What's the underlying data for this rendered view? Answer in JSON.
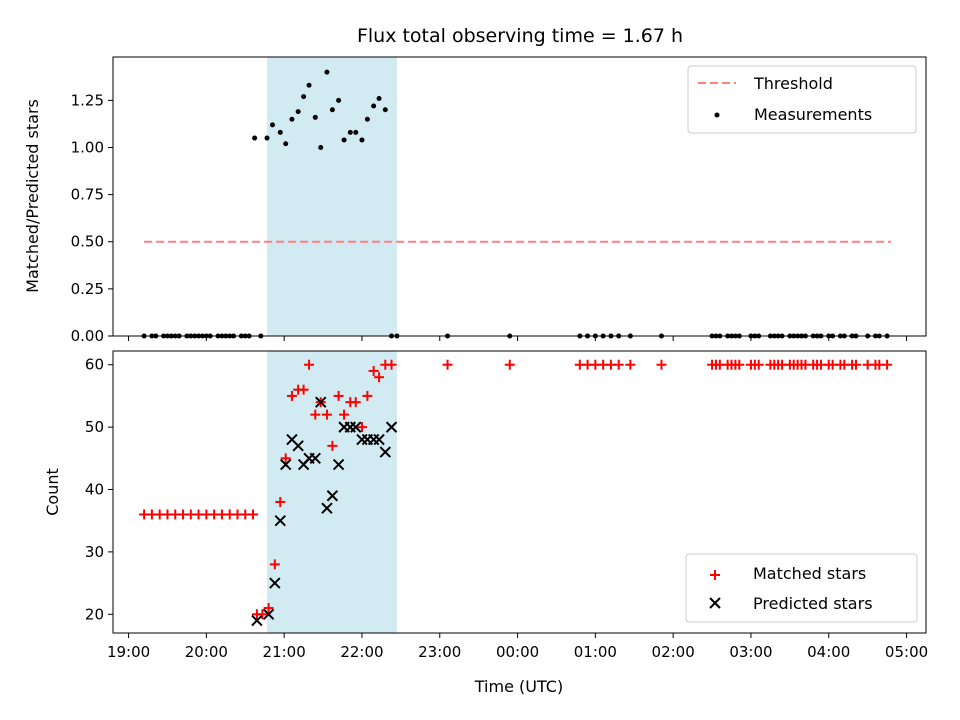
{
  "title": "Flux total observing time = 1.67 h",
  "colors": {
    "threshold": "#ff7f7f",
    "matched": "#ff0000",
    "predicted": "#000000",
    "span": "#add8e6",
    "axis": "#000000"
  },
  "chart_data": [
    {
      "type": "scatter",
      "panel": "top",
      "ylabel": "Matched/Predicted stars",
      "xlim": [
        -0.2,
        10.25
      ],
      "ylim": [
        0,
        1.48
      ],
      "x_origin": "19:00",
      "yticks": [
        0,
        0.25,
        0.5,
        0.75,
        1.0,
        1.25
      ],
      "ytick_labels": [
        "0.00",
        "0.25",
        "0.50",
        "0.75",
        "1.00",
        "1.25"
      ],
      "highlight_span_hours": [
        1.78,
        3.45
      ],
      "threshold": {
        "label": "Threshold",
        "value": 0.5,
        "x_range": [
          0.2,
          9.8
        ]
      },
      "legend": [
        "Threshold",
        "Measurements"
      ],
      "legend_position": "top-right",
      "series": [
        {
          "name": "Measurements",
          "x": [
            0.2,
            0.3,
            0.35,
            0.45,
            0.5,
            0.55,
            0.6,
            0.65,
            0.75,
            0.8,
            0.85,
            0.9,
            0.95,
            1.0,
            1.05,
            1.15,
            1.2,
            1.25,
            1.3,
            1.35,
            1.45,
            1.5,
            1.55,
            1.62,
            1.7,
            1.78,
            1.85,
            1.95,
            2.02,
            2.1,
            2.18,
            2.25,
            2.32,
            2.4,
            2.47,
            2.55,
            2.62,
            2.7,
            2.77,
            2.85,
            2.92,
            3.0,
            3.07,
            3.15,
            3.22,
            3.3,
            3.38,
            3.45,
            4.1,
            4.9,
            5.8,
            5.9,
            6.0,
            6.1,
            6.2,
            6.3,
            6.45,
            6.85,
            7.5,
            7.55,
            7.6,
            7.7,
            7.75,
            7.8,
            7.85,
            8.0,
            8.05,
            8.1,
            8.25,
            8.3,
            8.35,
            8.4,
            8.5,
            8.55,
            8.6,
            8.65,
            8.7,
            8.8,
            8.85,
            8.9,
            9.0,
            9.05,
            9.15,
            9.2,
            9.3,
            9.35,
            9.5,
            9.6,
            9.65,
            9.75
          ],
          "y": [
            0,
            0,
            0,
            0,
            0,
            0,
            0,
            0,
            0,
            0,
            0,
            0,
            0,
            0,
            0,
            0,
            0,
            0,
            0,
            0,
            0,
            0,
            0,
            1.05,
            0,
            1.05,
            1.12,
            1.08,
            1.02,
            1.15,
            1.19,
            1.27,
            1.33,
            1.16,
            1.0,
            1.4,
            1.2,
            1.25,
            1.04,
            1.08,
            1.08,
            1.04,
            1.15,
            1.22,
            1.26,
            1.2,
            0,
            0,
            0,
            0,
            0,
            0,
            0,
            0,
            0,
            0,
            0,
            0,
            0,
            0,
            0,
            0,
            0,
            0,
            0,
            0,
            0,
            0,
            0,
            0,
            0,
            0,
            0,
            0,
            0,
            0,
            0,
            0,
            0,
            0,
            0,
            0,
            0,
            0,
            0,
            0,
            0,
            0,
            0,
            0
          ]
        }
      ]
    },
    {
      "type": "scatter",
      "panel": "bottom",
      "ylabel": "Count",
      "xlabel": "Time (UTC)",
      "xlim": [
        -0.2,
        10.25
      ],
      "ylim": [
        17,
        62.2
      ],
      "x_origin": "19:00",
      "xticks": [
        0,
        1,
        2,
        3,
        4,
        5,
        6,
        7,
        8,
        9,
        10
      ],
      "xtick_labels": [
        "19:00",
        "20:00",
        "21:00",
        "22:00",
        "23:00",
        "00:00",
        "01:00",
        "02:00",
        "03:00",
        "04:00",
        "05:00"
      ],
      "yticks": [
        20,
        30,
        40,
        50,
        60
      ],
      "ytick_labels": [
        "20",
        "30",
        "40",
        "50",
        "60"
      ],
      "highlight_span_hours": [
        1.78,
        3.45
      ],
      "legend": [
        "Matched stars",
        "Predicted stars"
      ],
      "legend_position": "lower-right",
      "series": [
        {
          "name": "Matched stars",
          "marker": "plus",
          "x": [
            0.2,
            0.3,
            0.4,
            0.5,
            0.6,
            0.7,
            0.8,
            0.9,
            1.0,
            1.1,
            1.2,
            1.3,
            1.4,
            1.5,
            1.6,
            1.65,
            1.72,
            1.8,
            1.88,
            1.95,
            2.02,
            2.1,
            2.18,
            2.25,
            2.32,
            2.4,
            2.47,
            2.55,
            2.62,
            2.7,
            2.77,
            2.85,
            2.92,
            3.0,
            3.07,
            3.15,
            3.22,
            3.3,
            3.38,
            4.1,
            4.9,
            5.8,
            5.9,
            6.0,
            6.1,
            6.2,
            6.3,
            6.45,
            6.85,
            7.5,
            7.55,
            7.6,
            7.7,
            7.75,
            7.8,
            7.85,
            8.0,
            8.05,
            8.1,
            8.25,
            8.3,
            8.35,
            8.4,
            8.5,
            8.55,
            8.6,
            8.65,
            8.7,
            8.8,
            8.85,
            8.9,
            9.0,
            9.05,
            9.15,
            9.2,
            9.3,
            9.35,
            9.5,
            9.6,
            9.65,
            9.75
          ],
          "y": [
            36,
            36,
            36,
            36,
            36,
            36,
            36,
            36,
            36,
            36,
            36,
            36,
            36,
            36,
            36,
            20,
            20,
            21,
            28,
            38,
            45,
            55,
            56,
            56,
            60,
            52,
            54,
            52,
            47,
            55,
            52,
            54,
            54,
            50,
            55,
            59,
            58,
            60,
            60,
            60,
            60,
            60,
            60,
            60,
            60,
            60,
            60,
            60,
            60,
            60,
            60,
            60,
            60,
            60,
            60,
            60,
            60,
            60,
            60,
            60,
            60,
            60,
            60,
            60,
            60,
            60,
            60,
            60,
            60,
            60,
            60,
            60,
            60,
            60,
            60,
            60,
            60,
            60,
            60,
            60,
            60
          ]
        },
        {
          "name": "Predicted stars",
          "marker": "x",
          "x": [
            1.65,
            1.8,
            1.88,
            1.95,
            2.02,
            2.1,
            2.18,
            2.25,
            2.32,
            2.4,
            2.47,
            2.55,
            2.62,
            2.7,
            2.77,
            2.85,
            2.92,
            3.0,
            3.07,
            3.15,
            3.22,
            3.3,
            3.38
          ],
          "y": [
            19,
            20,
            25,
            35,
            44,
            48,
            47,
            44,
            45,
            45,
            54,
            37,
            39,
            44,
            50,
            50,
            50,
            48,
            48,
            48,
            48,
            46,
            50
          ]
        }
      ]
    }
  ]
}
